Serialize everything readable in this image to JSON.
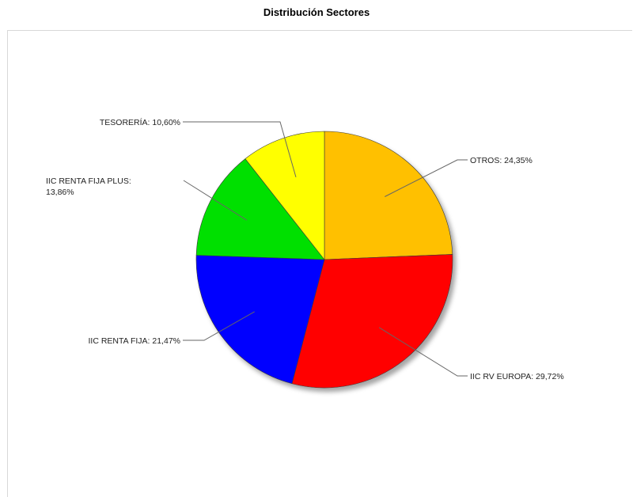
{
  "chart_data": {
    "type": "pie",
    "title": "Distribución Sectores",
    "slices": [
      {
        "label": "OTROS: 24,35%",
        "value": 24.35,
        "color": "#FFC000"
      },
      {
        "label": "IIC RV EUROPA: 29,72%",
        "value": 29.72,
        "color": "#FF0000"
      },
      {
        "label": "IIC RENTA FIJA: 21,47%",
        "value": 21.47,
        "color": "#0000FF"
      },
      {
        "label": "IIC RENTA FIJA PLUS:|13,86%",
        "value": 13.86,
        "color": "#00E000"
      },
      {
        "label": "TESORERÍA: 10,60%",
        "value": 10.6,
        "color": "#FFFF00"
      }
    ]
  }
}
